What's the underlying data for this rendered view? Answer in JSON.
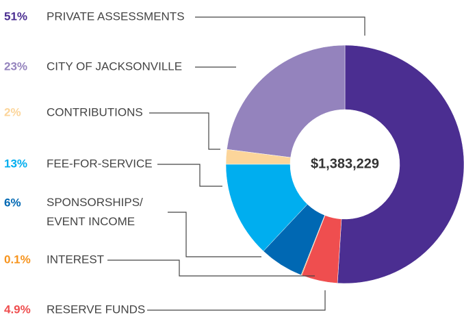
{
  "chart_data": {
    "type": "donut",
    "categories": [
      "PRIVATE ASSESSMENTS",
      "CITY OF JACKSONVILLE",
      "CONTRIBUTIONS",
      "FEE-FOR-SERVICE",
      "SPONSORSHIPS/\nEVENT INCOME",
      "INTEREST",
      "RESERVE FUNDS"
    ],
    "values": [
      51,
      23,
      2,
      13,
      6,
      0.1,
      4.9
    ],
    "value_labels": [
      "51%",
      "23%",
      "2%",
      "13%",
      "6%",
      "0.1%",
      "4.9%"
    ],
    "colors": [
      "#4b2e91",
      "#9483bd",
      "#fcd59a",
      "#00aeef",
      "#0068b3",
      "#f7941d",
      "#ef4e4f"
    ],
    "center_label": "$1,383,229"
  }
}
